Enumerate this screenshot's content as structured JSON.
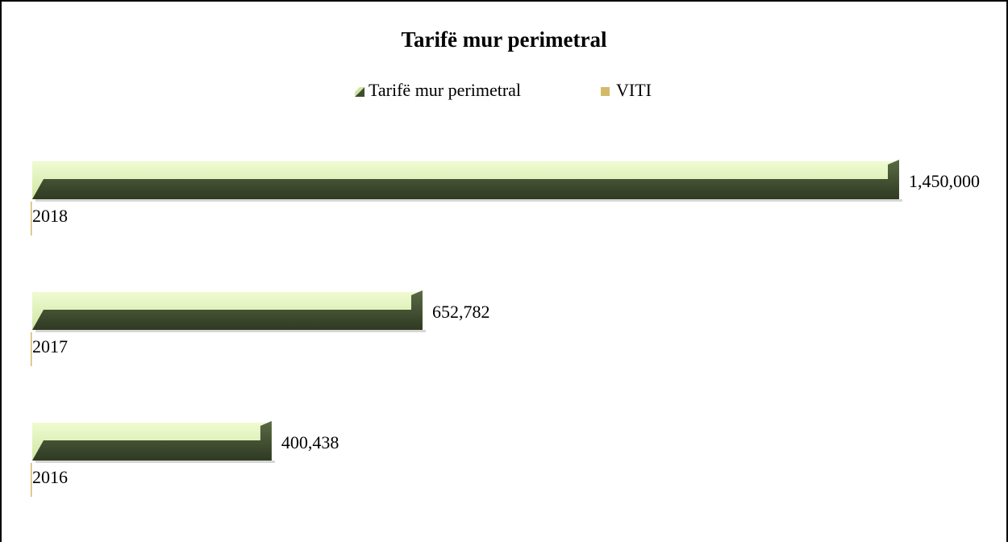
{
  "chart_data": {
    "type": "bar",
    "orientation": "horizontal",
    "title": "Tarifë mur perimetral",
    "categories": [
      null,
      null,
      null
    ],
    "series": [
      {
        "name": "Tarifë mur perimetral",
        "color": "#3f4d2f",
        "values": [
          400438,
          652782,
          1450000
        ],
        "value_labels": [
          "400,438",
          "652,782",
          "1,450,000"
        ]
      },
      {
        "name": "VITI",
        "color": "#d4b96a",
        "values": [
          2016,
          2017,
          2018
        ]
      }
    ]
  }
}
